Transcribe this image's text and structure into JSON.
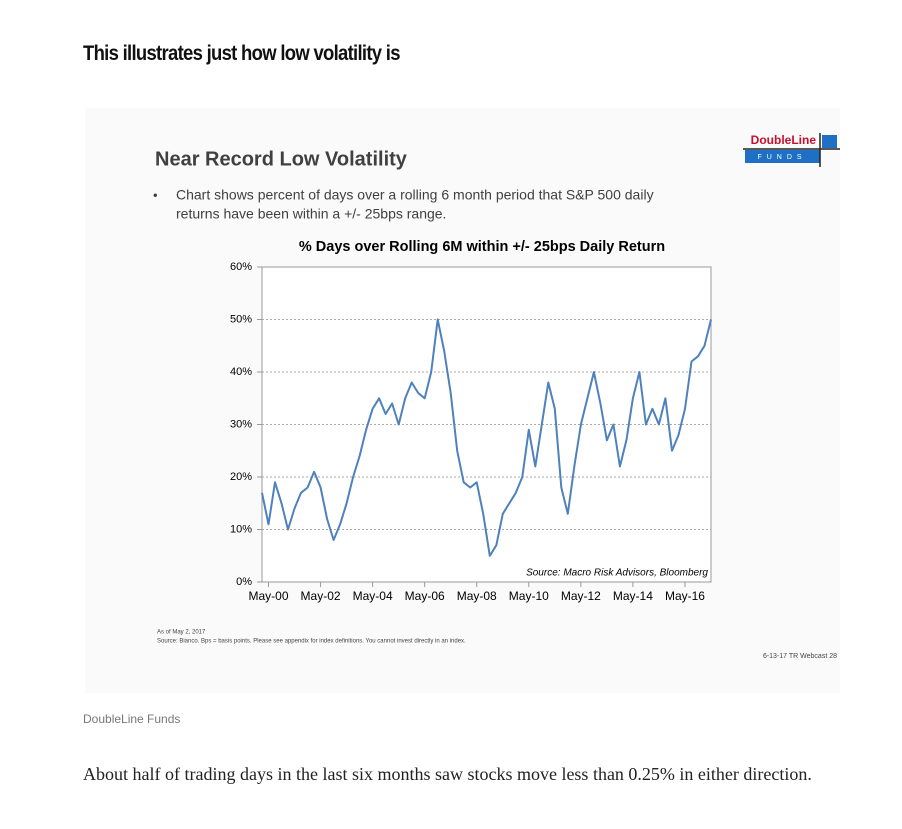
{
  "article": {
    "heading": "This illustrates just how low volatility is",
    "caption": "DoubleLine Funds",
    "paragraph": "About half of trading days in the last six months saw stocks move less than 0.25% in either direction."
  },
  "slide": {
    "title": "Near Record Low Volatility",
    "bullet_line1": "Chart shows percent of days over a rolling 6 month period that S&P 500 daily",
    "bullet_line2": "returns have been within a +/- 25bps range.",
    "logo_name": "DoubleLine",
    "logo_sub": "FUNDS",
    "footnote1": "As of May 2, 2017",
    "footnote2": "Source: Bianco. Bps = basis points. Please see appendix for index definitions. You cannot invest directly in an index.",
    "page_label": "6-13-17 TR Webcast 28"
  },
  "chart_data": {
    "type": "line",
    "title": "% Days over Rolling 6M within +/- 25bps Daily Return",
    "annotation": "Source: Macro Risk Advisors, Bloomberg",
    "color": "#4f81bd",
    "grid": true,
    "x": [
      "2000-02",
      "2000-05",
      "2000-08",
      "2000-11",
      "2001-02",
      "2001-05",
      "2001-08",
      "2001-11",
      "2002-02",
      "2002-05",
      "2002-08",
      "2002-11",
      "2003-02",
      "2003-05",
      "2003-08",
      "2003-11",
      "2004-02",
      "2004-05",
      "2004-08",
      "2004-11",
      "2005-02",
      "2005-05",
      "2005-08",
      "2005-11",
      "2006-02",
      "2006-05",
      "2006-08",
      "2006-11",
      "2007-02",
      "2007-05",
      "2007-08",
      "2007-11",
      "2008-02",
      "2008-05",
      "2008-08",
      "2008-11",
      "2009-02",
      "2009-05",
      "2009-08",
      "2009-11",
      "2010-02",
      "2010-05",
      "2010-08",
      "2010-11",
      "2011-02",
      "2011-05",
      "2011-08",
      "2011-11",
      "2012-02",
      "2012-05",
      "2012-08",
      "2012-11",
      "2013-02",
      "2013-05",
      "2013-08",
      "2013-11",
      "2014-02",
      "2014-05",
      "2014-08",
      "2014-11",
      "2015-02",
      "2015-05",
      "2015-08",
      "2015-11",
      "2016-02",
      "2016-05",
      "2016-08",
      "2016-11",
      "2017-02",
      "2017-05"
    ],
    "values": [
      17,
      11,
      19,
      15,
      10,
      14,
      17,
      18,
      21,
      18,
      12,
      8,
      11,
      15,
      20,
      24,
      29,
      33,
      35,
      32,
      34,
      30,
      35,
      38,
      36,
      35,
      40,
      50,
      44,
      36,
      25,
      19,
      18,
      19,
      13,
      5,
      7,
      13,
      15,
      17,
      20,
      29,
      22,
      30,
      38,
      33,
      18,
      13,
      22,
      30,
      35,
      40,
      34,
      27,
      30,
      22,
      27,
      35,
      40,
      30,
      33,
      30,
      35,
      25,
      28,
      33,
      42,
      43,
      45,
      50
    ],
    "xlim": [
      "2000-02",
      "2017-05"
    ],
    "xticks": [
      {
        "value": "2000-05",
        "label": "May-00"
      },
      {
        "value": "2002-05",
        "label": "May-02"
      },
      {
        "value": "2004-05",
        "label": "May-04"
      },
      {
        "value": "2006-05",
        "label": "May-06"
      },
      {
        "value": "2008-05",
        "label": "May-08"
      },
      {
        "value": "2010-05",
        "label": "May-10"
      },
      {
        "value": "2012-05",
        "label": "May-12"
      },
      {
        "value": "2014-05",
        "label": "May-14"
      },
      {
        "value": "2016-05",
        "label": "May-16"
      }
    ],
    "ylim": [
      0,
      60
    ],
    "yticks": [
      {
        "value": 0,
        "label": "0%"
      },
      {
        "value": 10,
        "label": "10%"
      },
      {
        "value": 20,
        "label": "20%"
      },
      {
        "value": 30,
        "label": "30%"
      },
      {
        "value": 40,
        "label": "40%"
      },
      {
        "value": 50,
        "label": "50%"
      },
      {
        "value": 60,
        "label": "60%"
      }
    ]
  }
}
